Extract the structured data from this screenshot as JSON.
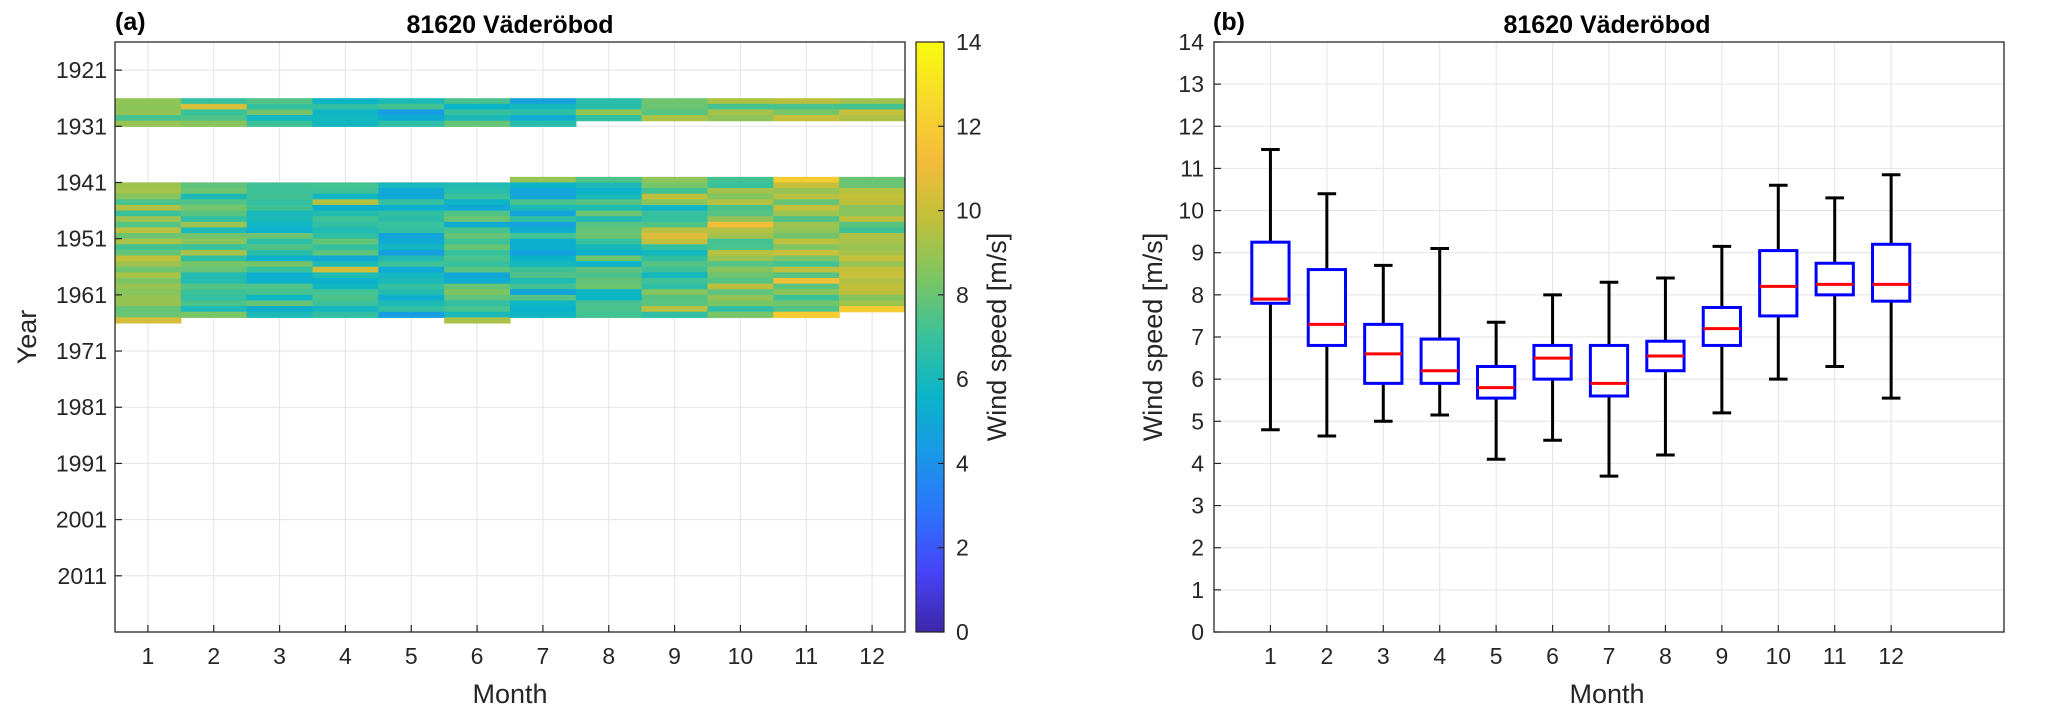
{
  "panels": [
    {
      "label": "(a)",
      "title": "81620 Väderöbod"
    },
    {
      "label": "(b)",
      "title": "81620 Väderöbod"
    }
  ],
  "colors": {
    "box": "#0000ff",
    "median": "#ff0000",
    "whisker": "#000000",
    "grid": "#e3e3e3",
    "colormap": [
      "#3e26a8",
      "#4743f8",
      "#2c73fd",
      "#1a98e7",
      "#0ab4c8",
      "#38c19b",
      "#7cc563",
      "#c1c03a",
      "#f4bb3a",
      "#f7d92b",
      "#f9fb0e"
    ]
  },
  "chart_data": [
    {
      "type": "heatmap",
      "title": "81620 Väderöbod",
      "xlabel": "Month",
      "ylabel": "Year",
      "xticks": [
        "1",
        "2",
        "3",
        "4",
        "5",
        "6",
        "7",
        "8",
        "9",
        "10",
        "11",
        "12"
      ],
      "yticks": [
        "1921",
        "1931",
        "1941",
        "1951",
        "1961",
        "1971",
        "1981",
        "1991",
        "2001",
        "2011"
      ],
      "ylim": [
        1916,
        2021
      ],
      "colorbar": {
        "label": "Wind speed [m/s]",
        "range": [
          0,
          14
        ],
        "ticks": [
          "0",
          "2",
          "4",
          "6",
          "8",
          "10",
          "12",
          "14"
        ]
      },
      "data_coverage": [
        {
          "month": 1,
          "periods": [
            [
              1926,
              1931
            ],
            [
              1941,
              1966
            ]
          ]
        },
        {
          "month": 2,
          "periods": [
            [
              1926,
              1931
            ],
            [
              1941,
              1965
            ]
          ]
        },
        {
          "month": 3,
          "periods": [
            [
              1926,
              1931
            ],
            [
              1941,
              1965
            ]
          ]
        },
        {
          "month": 4,
          "periods": [
            [
              1926,
              1931
            ],
            [
              1941,
              1965
            ]
          ]
        },
        {
          "month": 5,
          "periods": [
            [
              1926,
              1931
            ],
            [
              1941,
              1965
            ]
          ]
        },
        {
          "month": 6,
          "periods": [
            [
              1926,
              1931
            ],
            [
              1941,
              1966
            ]
          ]
        },
        {
          "month": 7,
          "periods": [
            [
              1926,
              1931
            ],
            [
              1940,
              1965
            ]
          ]
        },
        {
          "month": 8,
          "periods": [
            [
              1926,
              1930
            ],
            [
              1940,
              1965
            ]
          ]
        },
        {
          "month": 9,
          "periods": [
            [
              1926,
              1930
            ],
            [
              1940,
              1965
            ]
          ]
        },
        {
          "month": 10,
          "periods": [
            [
              1926,
              1930
            ],
            [
              1940,
              1965
            ]
          ]
        },
        {
          "month": 11,
          "periods": [
            [
              1926,
              1930
            ],
            [
              1940,
              1965
            ]
          ]
        },
        {
          "month": 12,
          "periods": [
            [
              1926,
              1930
            ],
            [
              1940,
              1964
            ]
          ]
        }
      ],
      "monthly_mean": [
        8.3,
        7.7,
        6.6,
        6.5,
        5.9,
        6.4,
        6.2,
        6.6,
        7.3,
        8.3,
        8.4,
        8.5
      ]
    },
    {
      "type": "box",
      "title": "81620 Väderöbod",
      "xlabel": "Month",
      "ylabel": "Wind speed [m/s]",
      "ylim": [
        0,
        14
      ],
      "xlim": [
        0,
        14
      ],
      "yticks": [
        "0",
        "1",
        "2",
        "3",
        "4",
        "5",
        "6",
        "7",
        "8",
        "9",
        "10",
        "11",
        "12",
        "13",
        "14"
      ],
      "categories": [
        "1",
        "2",
        "3",
        "4",
        "5",
        "6",
        "7",
        "8",
        "9",
        "10",
        "11",
        "12"
      ],
      "boxes": [
        {
          "month": 1,
          "min": 4.8,
          "q1": 7.8,
          "median": 7.9,
          "q3": 9.25,
          "max": 11.45
        },
        {
          "month": 2,
          "min": 4.65,
          "q1": 6.8,
          "median": 7.3,
          "q3": 8.6,
          "max": 10.4
        },
        {
          "month": 3,
          "min": 5.0,
          "q1": 5.9,
          "median": 6.6,
          "q3": 7.3,
          "max": 8.7
        },
        {
          "month": 4,
          "min": 5.15,
          "q1": 5.9,
          "median": 6.2,
          "q3": 6.95,
          "max": 9.1
        },
        {
          "month": 5,
          "min": 4.1,
          "q1": 5.55,
          "median": 5.8,
          "q3": 6.3,
          "max": 7.35
        },
        {
          "month": 6,
          "min": 4.55,
          "q1": 6.0,
          "median": 6.5,
          "q3": 6.8,
          "max": 8.0
        },
        {
          "month": 7,
          "min": 3.7,
          "q1": 5.6,
          "median": 5.9,
          "q3": 6.8,
          "max": 8.3
        },
        {
          "month": 8,
          "min": 4.2,
          "q1": 6.2,
          "median": 6.55,
          "q3": 6.9,
          "max": 8.4
        },
        {
          "month": 9,
          "min": 5.2,
          "q1": 6.8,
          "median": 7.2,
          "q3": 7.7,
          "max": 9.15
        },
        {
          "month": 10,
          "min": 6.0,
          "q1": 7.5,
          "median": 8.2,
          "q3": 9.05,
          "max": 10.6
        },
        {
          "month": 11,
          "min": 6.3,
          "q1": 8.0,
          "median": 8.25,
          "q3": 8.75,
          "max": 10.3
        },
        {
          "month": 12,
          "min": 5.55,
          "q1": 7.85,
          "median": 8.25,
          "q3": 9.2,
          "max": 10.85
        }
      ]
    }
  ]
}
